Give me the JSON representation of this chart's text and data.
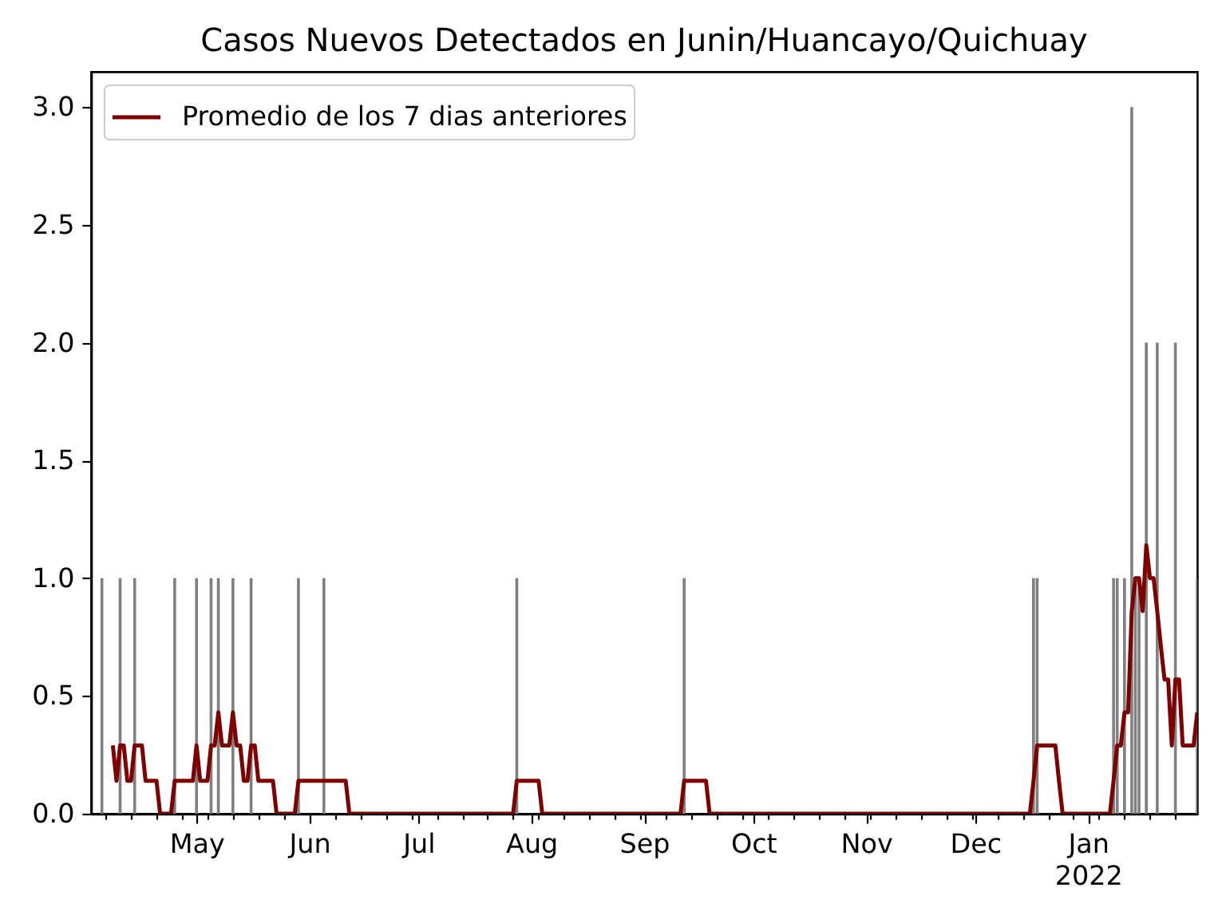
{
  "chart_data": {
    "type": "bar",
    "title": "Casos Nuevos Detectados en Junin/Huancayo/Quichuay",
    "xlim": [
      "2021-04-02",
      "2022-01-31"
    ],
    "xticks": [
      {
        "value": "2021-04-06",
        "label": null
      },
      {
        "value": "2021-04-13",
        "label": null
      },
      {
        "value": "2021-04-20",
        "label": null
      },
      {
        "value": "2021-04-27",
        "label": null
      },
      {
        "value": "2021-05-01",
        "label": "May"
      },
      {
        "value": "2021-05-04",
        "label": null
      },
      {
        "value": "2021-05-11",
        "label": null
      },
      {
        "value": "2021-05-18",
        "label": null
      },
      {
        "value": "2021-05-25",
        "label": null
      },
      {
        "value": "2021-06-01",
        "label": "Jun"
      },
      {
        "value": "2021-06-08",
        "label": null
      },
      {
        "value": "2021-06-15",
        "label": null
      },
      {
        "value": "2021-06-22",
        "label": null
      },
      {
        "value": "2021-06-29",
        "label": null
      },
      {
        "value": "2021-07-01",
        "label": "Jul"
      },
      {
        "value": "2021-07-06",
        "label": null
      },
      {
        "value": "2021-07-13",
        "label": null
      },
      {
        "value": "2021-07-20",
        "label": null
      },
      {
        "value": "2021-07-27",
        "label": null
      },
      {
        "value": "2021-08-01",
        "label": "Aug"
      },
      {
        "value": "2021-08-03",
        "label": null
      },
      {
        "value": "2021-08-10",
        "label": null
      },
      {
        "value": "2021-08-17",
        "label": null
      },
      {
        "value": "2021-08-24",
        "label": null
      },
      {
        "value": "2021-08-31",
        "label": null
      },
      {
        "value": "2021-09-01",
        "label": "Sep"
      },
      {
        "value": "2021-09-07",
        "label": null
      },
      {
        "value": "2021-09-14",
        "label": null
      },
      {
        "value": "2021-09-21",
        "label": null
      },
      {
        "value": "2021-09-28",
        "label": null
      },
      {
        "value": "2021-10-01",
        "label": "Oct"
      },
      {
        "value": "2021-10-05",
        "label": null
      },
      {
        "value": "2021-10-12",
        "label": null
      },
      {
        "value": "2021-10-19",
        "label": null
      },
      {
        "value": "2021-10-26",
        "label": null
      },
      {
        "value": "2021-11-01",
        "label": "Nov"
      },
      {
        "value": "2021-11-02",
        "label": null
      },
      {
        "value": "2021-11-09",
        "label": null
      },
      {
        "value": "2021-11-16",
        "label": null
      },
      {
        "value": "2021-11-23",
        "label": null
      },
      {
        "value": "2021-11-30",
        "label": null
      },
      {
        "value": "2021-12-01",
        "label": "Dec"
      },
      {
        "value": "2021-12-07",
        "label": null
      },
      {
        "value": "2021-12-14",
        "label": null
      },
      {
        "value": "2021-12-21",
        "label": null
      },
      {
        "value": "2021-12-28",
        "label": null
      },
      {
        "value": "2022-01-01",
        "label": "Jan\n2022"
      },
      {
        "value": "2022-01-04",
        "label": null
      },
      {
        "value": "2022-01-11",
        "label": null
      },
      {
        "value": "2022-01-18",
        "label": null
      },
      {
        "value": "2022-01-25",
        "label": null
      }
    ],
    "ylim": [
      0,
      3.15
    ],
    "yticks": [
      {
        "value": 0,
        "label": "0.0"
      },
      {
        "value": 0.5,
        "label": "0.5"
      },
      {
        "value": 1,
        "label": "1.0"
      },
      {
        "value": 1.5,
        "label": "1.5"
      },
      {
        "value": 2,
        "label": "2.0"
      },
      {
        "value": 2.5,
        "label": "2.5"
      },
      {
        "value": 3,
        "label": "3.0"
      }
    ],
    "grid": false,
    "legend": "top left",
    "series": [
      {
        "color": "#808080",
        "x": [
          "2021-04-05",
          "2021-04-10",
          "2021-04-14",
          "2021-04-25",
          "2021-05-01",
          "2021-05-05",
          "2021-05-07",
          "2021-05-11",
          "2021-05-16",
          "2021-05-29",
          "2021-06-05",
          "2021-07-28",
          "2021-09-12",
          "2021-12-17",
          "2021-12-18",
          "2022-01-08",
          "2022-01-09",
          "2022-01-11",
          "2022-01-13",
          "2022-01-14",
          "2022-01-15",
          "2022-01-17",
          "2022-01-20",
          "2022-01-25",
          "2022-01-31"
        ],
        "values": [
          1,
          1,
          1,
          1,
          1,
          1,
          1,
          1,
          1,
          1,
          1,
          1,
          1,
          1,
          1,
          1,
          1,
          1,
          3,
          1,
          1,
          2,
          2,
          2,
          1
        ]
      },
      {
        "type": "line",
        "name": "Promedio de los 7 dias anteriores",
        "color": "#800000",
        "x": [
          "2021-04-08",
          "2021-04-09",
          "2021-04-10",
          "2021-04-11",
          "2021-04-12",
          "2021-04-13",
          "2021-04-14",
          "2021-04-16",
          "2021-04-17",
          "2021-04-20",
          "2021-04-21",
          "2021-04-24",
          "2021-04-25",
          "2021-04-30",
          "2021-05-01",
          "2021-05-02",
          "2021-05-04",
          "2021-05-05",
          "2021-05-06",
          "2021-05-07",
          "2021-05-08",
          "2021-05-10",
          "2021-05-11",
          "2021-05-12",
          "2021-05-13",
          "2021-05-14",
          "2021-05-15",
          "2021-05-16",
          "2021-05-17",
          "2021-05-18",
          "2021-05-22",
          "2021-05-23",
          "2021-05-28",
          "2021-05-29",
          "2021-06-11",
          "2021-06-12",
          "2021-07-27",
          "2021-07-28",
          "2021-08-03",
          "2021-08-04",
          "2021-09-11",
          "2021-09-12",
          "2021-09-18",
          "2021-09-19",
          "2021-12-16",
          "2021-12-17",
          "2021-12-18",
          "2021-12-23",
          "2021-12-24",
          "2021-12-25",
          "2022-01-07",
          "2022-01-08",
          "2022-01-09",
          "2022-01-10",
          "2022-01-11",
          "2022-01-12",
          "2022-01-13",
          "2022-01-14",
          "2022-01-15",
          "2022-01-16",
          "2022-01-17",
          "2022-01-18",
          "2022-01-19",
          "2022-01-20",
          "2022-01-21",
          "2022-01-22",
          "2022-01-23",
          "2022-01-24",
          "2022-01-25",
          "2022-01-26",
          "2022-01-27",
          "2022-01-30",
          "2022-01-31"
        ],
        "values": [
          0.29,
          0.14,
          0.29,
          0.29,
          0.14,
          0.14,
          0.29,
          0.29,
          0.14,
          0.14,
          0,
          0,
          0.14,
          0.14,
          0.29,
          0.14,
          0.14,
          0.29,
          0.29,
          0.43,
          0.29,
          0.29,
          0.43,
          0.29,
          0.29,
          0.14,
          0.14,
          0.29,
          0.29,
          0.14,
          0.14,
          0,
          0,
          0.14,
          0.14,
          0,
          0,
          0.14,
          0.14,
          0,
          0,
          0.14,
          0.14,
          0,
          0,
          0.14,
          0.29,
          0.29,
          0.14,
          0,
          0,
          0.14,
          0.29,
          0.29,
          0.43,
          0.43,
          0.86,
          1.0,
          1.0,
          0.86,
          1.14,
          1.0,
          1.0,
          0.86,
          0.71,
          0.57,
          0.57,
          0.29,
          0.57,
          0.57,
          0.29,
          0.29,
          0.43
        ]
      }
    ]
  }
}
